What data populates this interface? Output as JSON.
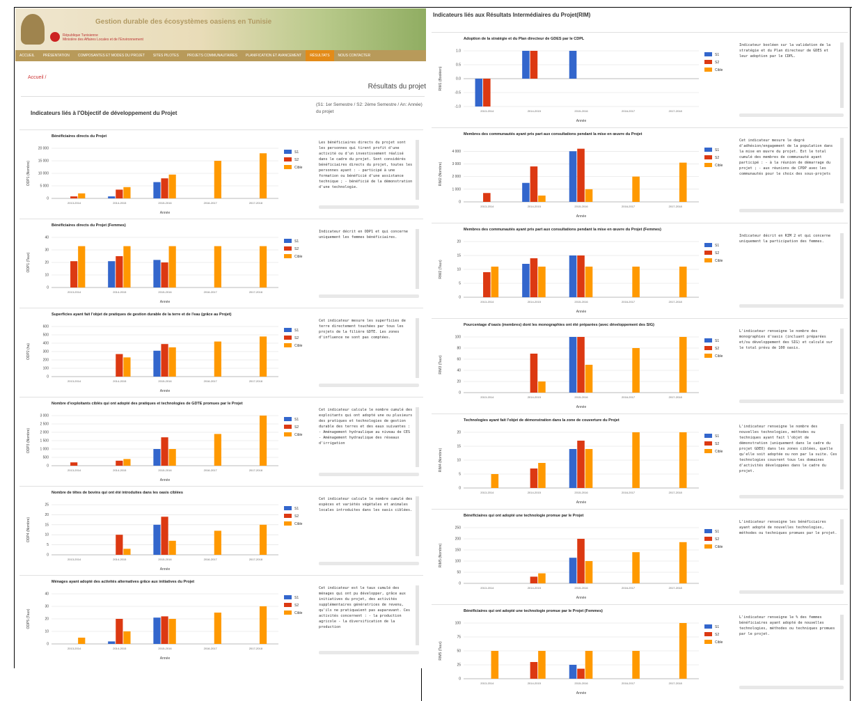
{
  "header": {
    "title": "Gestion durable des écosystèmes oasiens en Tunisie",
    "ministry_1": "République Tunisienne",
    "ministry_2": "Ministère des Affaires Locales et de l'Environnement"
  },
  "nav": [
    "ACCUEIL",
    "PRÉSENTATION",
    "COMPOSANTES ET MODES DU PROJET",
    "SITES PILOTES",
    "PROJETS COMMUNAUTAIRES",
    "PLANIFICATION ET AVANCEMENT",
    "RÉSULTATS",
    "NOUS CONTACTER"
  ],
  "breadcrumb": "Accueil /",
  "page_heading": "Résultats du projet",
  "left_section_title": "Indicateurs liés à l'Objectif de développement du Projet",
  "legend_note": "(S1: 1er Semestre / S2: 2ème Semestre / An: Année) du projet",
  "right_section_title": "Indicateurs liés aux Résultats Intermédiaires du Projet(RIM)",
  "chart_data": [
    {
      "type": "bar",
      "title": "Bénéficiaires directs du Projet",
      "y_label": "ODP1 (Nombre)",
      "x_label": "Année",
      "categories": [
        "2013-2014",
        "2014-2015",
        "2015-2016",
        "2016-2017",
        "2017-2018"
      ],
      "series": [
        {
          "name": "S1",
          "color": "#3366cc",
          "values": [
            0,
            800,
            6500,
            0,
            0
          ]
        },
        {
          "name": "S2",
          "color": "#dc3912",
          "values": [
            800,
            3500,
            8000,
            0,
            0
          ]
        },
        {
          "name": "Cible",
          "color": "#ff9900",
          "values": [
            2000,
            4500,
            9500,
            15000,
            18000
          ]
        }
      ],
      "ylim": [
        0,
        20000
      ],
      "yticks": [
        0,
        {
          "value": 5000,
          "label": "5 000"
        },
        {
          "value": 10000,
          "label": "10 000"
        },
        {
          "value": 15000,
          "label": "15 000"
        },
        {
          "value": 20000,
          "label": "20 000"
        }
      ],
      "description": "Les bénéficiaires directs du projet sont les personnes qui tirent profit d'une activité ou d'un investissement réalisé dans le cadre du projet. Sont considérés bénéficiaires directs du projet, toutes les personnes ayant : - participé à une formation ou bénéficié d'une assistance technique ; - bénéficié de la démonstration d'une technologie."
    },
    {
      "type": "bar",
      "title": "Bénéficiaires directs du Projet (Femmes)",
      "y_label": "ODP1 (Taux)",
      "x_label": "Année",
      "categories": [
        "2013-2014",
        "2014-2015",
        "2015-2016",
        "2016-2017",
        "2017-2018"
      ],
      "series": [
        {
          "name": "S1",
          "color": "#3366cc",
          "values": [
            0,
            21,
            22,
            0,
            0
          ]
        },
        {
          "name": "S2",
          "color": "#dc3912",
          "values": [
            21,
            25,
            20,
            0,
            0
          ]
        },
        {
          "name": "Cible",
          "color": "#ff9900",
          "values": [
            33,
            33,
            33,
            33,
            33
          ]
        }
      ],
      "ylim": [
        0,
        40
      ],
      "yticks": [
        0,
        10,
        20,
        30,
        40
      ],
      "description": "Indicateur décrit en ODP1 et qui concerne uniquement les femmes bénéficiaires."
    },
    {
      "type": "bar",
      "title": "Superficies ayant fait l'objet de pratiques de gestion durable de la terre et de l'eau (grâce au Projet)",
      "y_label": "ODP2 (ha)",
      "x_label": "Année",
      "categories": [
        "2013-2014",
        "2014-2015",
        "2015-2016",
        "2016-2017",
        "2017-2018"
      ],
      "series": [
        {
          "name": "S1",
          "color": "#3366cc",
          "values": [
            0,
            0,
            310,
            0,
            0
          ]
        },
        {
          "name": "S2",
          "color": "#dc3912",
          "values": [
            0,
            270,
            390,
            0,
            0
          ]
        },
        {
          "name": "Cible",
          "color": "#ff9900",
          "values": [
            0,
            230,
            350,
            420,
            480
          ]
        }
      ],
      "ylim": [
        0,
        600
      ],
      "yticks": [
        0,
        100,
        200,
        300,
        400,
        500,
        600
      ],
      "description": "Cet indicateur mesure les superficies de terre directement touchées par tous les projets de la filière GDTE. Les zones d'influence ne sont pas comptées."
    },
    {
      "type": "bar",
      "title": "Nombre d'exploitants ciblés qui ont adopté des pratiques et technologies de GDTE promues par le Projet",
      "y_label": "ODP3 (Nombre)",
      "x_label": "Année",
      "categories": [
        "2013-2014",
        "2014-2015",
        "2015-2016",
        "2016-2017",
        "2017-2018"
      ],
      "series": [
        {
          "name": "S1",
          "color": "#3366cc",
          "values": [
            0,
            0,
            1000,
            0,
            0
          ]
        },
        {
          "name": "S2",
          "color": "#dc3912",
          "values": [
            200,
            300,
            1700,
            0,
            0
          ]
        },
        {
          "name": "Cible",
          "color": "#ff9900",
          "values": [
            0,
            400,
            1000,
            1900,
            3000
          ]
        }
      ],
      "ylim": [
        0,
        3000
      ],
      "yticks": [
        0,
        500,
        {
          "value": 1000,
          "label": "1 000"
        },
        {
          "value": 1500,
          "label": "1 500"
        },
        {
          "value": 2000,
          "label": "2 000"
        },
        {
          "value": 2500,
          "label": "2 500"
        },
        {
          "value": 3000,
          "label": "3 000"
        }
      ],
      "description": "Cet indicateur calcule le nombre cumulé des exploitants qui ont adopté une ou plusieurs des pratiques et technologies de gestion durable des terres et des eaux suivantes : - Aménagement hydraulique au niveau de CES - Aménagement hydraulique des réseaux d'irrigation"
    },
    {
      "type": "bar",
      "title": "Nombre de têtes de bovins qui ont été introduites dans les oasis ciblées",
      "y_label": "ODP4 (Nombre)",
      "x_label": "Année",
      "categories": [
        "2013-2014",
        "2014-2015",
        "2015-2016",
        "2016-2017",
        "2017-2018"
      ],
      "series": [
        {
          "name": "S1",
          "color": "#3366cc",
          "values": [
            0,
            0,
            15,
            0,
            0
          ]
        },
        {
          "name": "S2",
          "color": "#dc3912",
          "values": [
            0,
            10,
            19,
            0,
            0
          ]
        },
        {
          "name": "Cible",
          "color": "#ff9900",
          "values": [
            0,
            3,
            7,
            12,
            15
          ]
        }
      ],
      "ylim": [
        0,
        25
      ],
      "yticks": [
        0,
        5,
        10,
        15,
        20,
        25
      ],
      "description": "Cet indicateur calcule le nombre cumulé des espèces et variétés végétales et animales locales introduites dans les oasis ciblées."
    },
    {
      "type": "bar",
      "title": "Ménages ayant adopté des activités alternatives grâce aux initiatives du Projet",
      "y_label": "ODP5 (Taux)",
      "x_label": "Année",
      "categories": [
        "2013-2014",
        "2014-2015",
        "2015-2016",
        "2016-2017",
        "2017-2018"
      ],
      "series": [
        {
          "name": "S1",
          "color": "#3366cc",
          "values": [
            0,
            2,
            21,
            0,
            0
          ]
        },
        {
          "name": "S2",
          "color": "#dc3912",
          "values": [
            0,
            20,
            22,
            0,
            0
          ]
        },
        {
          "name": "Cible",
          "color": "#ff9900",
          "values": [
            5,
            10,
            20,
            25,
            30
          ]
        }
      ],
      "ylim": [
        0,
        40
      ],
      "yticks": [
        0,
        10,
        20,
        30,
        40
      ],
      "description": "Cet indicateur est le taux cumulé des ménages qui ont pu développer, grâce aux initiatives du projet, des activités supplémentaires génératrices de revenu, qu'ils ne pratiquaient pas auparavant. Ces activités concernent : - la production agricole - la diversification de la production"
    },
    {
      "type": "bar",
      "title": "Adoption de la stratégie et du Plan directeur de GDES par le CDPL",
      "y_label": "RIM1 (Booléen)",
      "x_label": "Année",
      "categories": [
        "2013-2014",
        "2014-2015",
        "2015-2016",
        "2016-2017",
        "2017-2018"
      ],
      "series": [
        {
          "name": "S1",
          "color": "#3366cc",
          "values": [
            -1,
            1,
            1,
            0,
            0
          ]
        },
        {
          "name": "S2",
          "color": "#dc3912",
          "values": [
            -1,
            1,
            0,
            0,
            0
          ]
        },
        {
          "name": "Cible",
          "color": "#ff9900",
          "values": [
            0,
            0,
            0,
            0,
            0
          ]
        }
      ],
      "ylim": [
        -1,
        1
      ],
      "yticks": [
        {
          "value": -1,
          "label": "-1.0"
        },
        -0.5,
        {
          "value": 0,
          "label": "0.0"
        },
        0.5,
        {
          "value": 1,
          "label": "1.0"
        }
      ],
      "description": "Indicateur booléen sur la validation de la stratégie et du Plan directeur de GDES et leur adoption par le CDPL."
    },
    {
      "type": "bar",
      "title": "Membres des communautés ayant pris part aux consultations pendant la mise en œuvre du Projet",
      "y_label": "RIM2 (Nombre)",
      "x_label": "Année",
      "categories": [
        "2013-2014",
        "2014-2015",
        "2015-2016",
        "2016-2017",
        "2017-2018"
      ],
      "series": [
        {
          "name": "S1",
          "color": "#3366cc",
          "values": [
            0,
            1500,
            4000,
            0,
            0
          ]
        },
        {
          "name": "S2",
          "color": "#dc3912",
          "values": [
            700,
            2800,
            4200,
            0,
            0
          ]
        },
        {
          "name": "Cible",
          "color": "#ff9900",
          "values": [
            0,
            500,
            1000,
            2000,
            3100
          ]
        }
      ],
      "ylim": [
        0,
        4400
      ],
      "yticks": [
        0,
        {
          "value": 1000,
          "label": "1 000"
        },
        {
          "value": 2000,
          "label": "2 000"
        },
        {
          "value": 3000,
          "label": "3 000"
        },
        {
          "value": 4000,
          "label": "4 000"
        }
      ],
      "description": "Cet indicateur mesure le degré d'adhésion/engagement de la population dans la mise en œuvre du projet. Est le total cumulé des membres de communauté ayant participé : - à la réunion de démarrage du projet ; - aux réunions de CPDP avec les communautés pour le choix des sous-projets"
    },
    {
      "type": "bar",
      "title": "Membres des communautés ayant pris part aux consultations pendant la mise en œuvre du Projet (Femmes)",
      "y_label": "RIM2 (Taux)",
      "x_label": "Année",
      "categories": [
        "2013-2014",
        "2014-2015",
        "2015-2016",
        "2016-2017",
        "2017-2018"
      ],
      "series": [
        {
          "name": "S1",
          "color": "#3366cc",
          "values": [
            0,
            12,
            15,
            0,
            0
          ]
        },
        {
          "name": "S2",
          "color": "#dc3912",
          "values": [
            9,
            14,
            15,
            0,
            0
          ]
        },
        {
          "name": "Cible",
          "color": "#ff9900",
          "values": [
            11,
            11,
            11,
            11,
            11
          ]
        }
      ],
      "ylim": [
        0,
        20
      ],
      "yticks": [
        0,
        5,
        10,
        15,
        20
      ],
      "description": "Indicateur décrit en RIM 2 et qui concerne uniquement la participation des femmes."
    },
    {
      "type": "bar",
      "title": "Pourcentage d'oasis (membres) dont les monographies ont été préparées (avec développement des SIG)",
      "y_label": "RIM3 (Taux)",
      "x_label": "Année",
      "categories": [
        "2013-2014",
        "2014-2015",
        "2015-2016",
        "2016-2017",
        "2017-2018"
      ],
      "series": [
        {
          "name": "S1",
          "color": "#3366cc",
          "values": [
            0,
            0,
            100,
            0,
            0
          ]
        },
        {
          "name": "S2",
          "color": "#dc3912",
          "values": [
            0,
            70,
            100,
            0,
            0
          ]
        },
        {
          "name": "Cible",
          "color": "#ff9900",
          "values": [
            0,
            20,
            50,
            80,
            100
          ]
        }
      ],
      "ylim": [
        0,
        100
      ],
      "yticks": [
        0,
        20,
        40,
        60,
        80,
        100
      ],
      "description": "L'indicateur renseigne le nombre des monographies d'oasis (incluant préparées et/ou développement des SIG) et calculé sur le total prévu de 100 oasis."
    },
    {
      "type": "bar",
      "title": "Technologies ayant fait l'objet de démonstration dans la zone de couverture du Projet",
      "y_label": "RIM4 (Nombre)",
      "x_label": "Année",
      "categories": [
        "2013-2014",
        "2014-2015",
        "2015-2016",
        "2016-2017",
        "2017-2018"
      ],
      "series": [
        {
          "name": "S1",
          "color": "#3366cc",
          "values": [
            0,
            0,
            14,
            0,
            0
          ]
        },
        {
          "name": "S2",
          "color": "#dc3912",
          "values": [
            0,
            7,
            17,
            0,
            0
          ]
        },
        {
          "name": "Cible",
          "color": "#ff9900",
          "values": [
            5,
            9,
            14,
            20,
            20
          ]
        }
      ],
      "ylim": [
        0,
        20
      ],
      "yticks": [
        0,
        5,
        10,
        15,
        20
      ],
      "description": "L'indicateur renseigne le nombre des nouvelles technologies, méthodes ou techniques ayant fait l'objet de démonstration (uniquement dans le cadre du projet GDEO) dans les zones ciblées, quelle qu'elle soit adoptée ou non par la suite. Ces technologies couvrent tous les domaines d'activités développées dans le cadre du projet."
    },
    {
      "type": "bar",
      "title": "Bénéficiaires qui ont adopté une technologie promue par le Projet",
      "y_label": "RIM5 (Nombre)",
      "x_label": "Année",
      "categories": [
        "2013-2014",
        "2014-2015",
        "2015-2016",
        "2016-2017",
        "2017-2018"
      ],
      "series": [
        {
          "name": "S1",
          "color": "#3366cc",
          "values": [
            0,
            0,
            115,
            0,
            0
          ]
        },
        {
          "name": "S2",
          "color": "#dc3912",
          "values": [
            0,
            30,
            200,
            0,
            0
          ]
        },
        {
          "name": "Cible",
          "color": "#ff9900",
          "values": [
            0,
            45,
            100,
            140,
            185
          ]
        }
      ],
      "ylim": [
        0,
        250
      ],
      "yticks": [
        0,
        50,
        100,
        150,
        200,
        250
      ],
      "description": "L'indicateur renseigne les bénéficiaires ayant adopté de nouvelles technologies, méthodes ou techniques promues par le projet."
    },
    {
      "type": "bar",
      "title": "Bénéficiaires qui ont adopté une technologie promue par le Projet (Femmes)",
      "y_label": "RIM5 (Taux)",
      "x_label": "Année",
      "categories": [
        "2013-2014",
        "2014-2015",
        "2015-2016",
        "2016-2017",
        "2017-2018"
      ],
      "series": [
        {
          "name": "S1",
          "color": "#3366cc",
          "values": [
            0,
            0,
            25,
            0,
            0
          ]
        },
        {
          "name": "S2",
          "color": "#dc3912",
          "values": [
            0,
            30,
            18,
            0,
            0
          ]
        },
        {
          "name": "Cible",
          "color": "#ff9900",
          "values": [
            50,
            50,
            50,
            50,
            100
          ]
        }
      ],
      "ylim": [
        0,
        100
      ],
      "yticks": [
        0,
        25,
        50,
        75,
        100
      ],
      "description": "L'indicateur renseigne le % des femmes bénéficiaires ayant adopté de nouvelles technologies, méthodes ou techniques promues par le projet."
    }
  ]
}
